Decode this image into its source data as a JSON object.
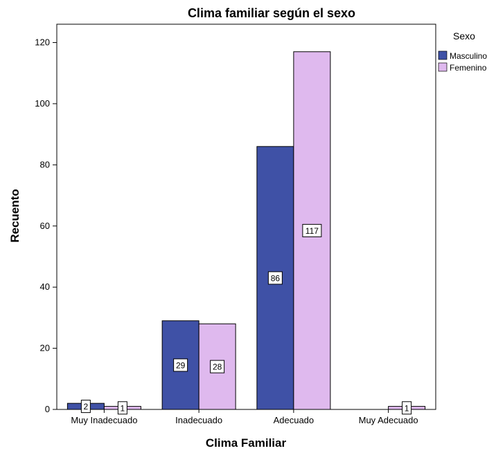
{
  "chart_data": {
    "type": "bar",
    "title": "Clima familiar según el sexo",
    "xlabel": "Clima Familiar",
    "ylabel": "Recuento",
    "categories": [
      "Muy Inadecuado",
      "Inadecuado",
      "Adecuado",
      "Muy Adecuado"
    ],
    "series": [
      {
        "name": "Masculino",
        "color": "#3f51a6",
        "values": [
          2,
          29,
          86,
          0
        ]
      },
      {
        "name": "Femenino",
        "color": "#dfb9ee",
        "values": [
          1,
          28,
          117,
          1
        ]
      }
    ],
    "ylim": [
      0,
      126
    ],
    "yticks": [
      0,
      20,
      40,
      60,
      80,
      100,
      120
    ],
    "legend": {
      "title": "Sexo",
      "position": "right"
    },
    "grid": false
  }
}
